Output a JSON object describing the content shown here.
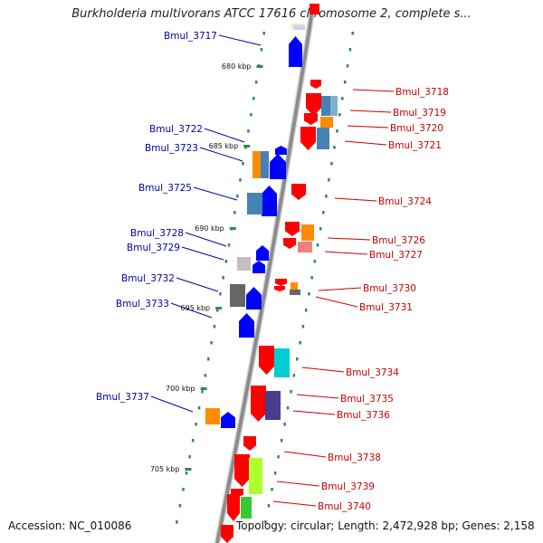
{
  "title": "Burkholderia multivorans ATCC 17616 chromosome 2, complete s...",
  "footer": {
    "accession": "Accession: NC_010086",
    "topology": "Topology: circular; Length: 2,472,928 bp; Genes: 2,158"
  },
  "colors": {
    "forward_label": "#0000aa",
    "reverse_label": "#cc0000",
    "backbone": "#8c8c8c",
    "tick": "#2e8b57",
    "forward_cds": "#0000ff",
    "reverse_cds": "#ff0000"
  },
  "kbp_ticks": [
    "680 kbp",
    "685 kbp",
    "690 kbp",
    "695 kbp",
    "700 kbp",
    "705 kbp"
  ],
  "genes": [
    {
      "id": "Bmul_3717",
      "strand": "forward"
    },
    {
      "id": "Bmul_3718",
      "strand": "reverse"
    },
    {
      "id": "Bmul_3719",
      "strand": "reverse"
    },
    {
      "id": "Bmul_3720",
      "strand": "reverse"
    },
    {
      "id": "Bmul_3721",
      "strand": "reverse"
    },
    {
      "id": "Bmul_3722",
      "strand": "forward"
    },
    {
      "id": "Bmul_3723",
      "strand": "forward"
    },
    {
      "id": "Bmul_3724",
      "strand": "reverse"
    },
    {
      "id": "Bmul_3725",
      "strand": "forward"
    },
    {
      "id": "Bmul_3726",
      "strand": "reverse"
    },
    {
      "id": "Bmul_3727",
      "strand": "reverse"
    },
    {
      "id": "Bmul_3728",
      "strand": "forward"
    },
    {
      "id": "Bmul_3729",
      "strand": "forward"
    },
    {
      "id": "Bmul_3730",
      "strand": "reverse"
    },
    {
      "id": "Bmul_3731",
      "strand": "reverse"
    },
    {
      "id": "Bmul_3732",
      "strand": "forward"
    },
    {
      "id": "Bmul_3733",
      "strand": "forward"
    },
    {
      "id": "Bmul_3734",
      "strand": "reverse"
    },
    {
      "id": "Bmul_3735",
      "strand": "reverse"
    },
    {
      "id": "Bmul_3736",
      "strand": "reverse"
    },
    {
      "id": "Bmul_3737",
      "strand": "forward"
    },
    {
      "id": "Bmul_3738",
      "strand": "reverse"
    },
    {
      "id": "Bmul_3739",
      "strand": "reverse"
    },
    {
      "id": "Bmul_3740",
      "strand": "reverse"
    }
  ]
}
